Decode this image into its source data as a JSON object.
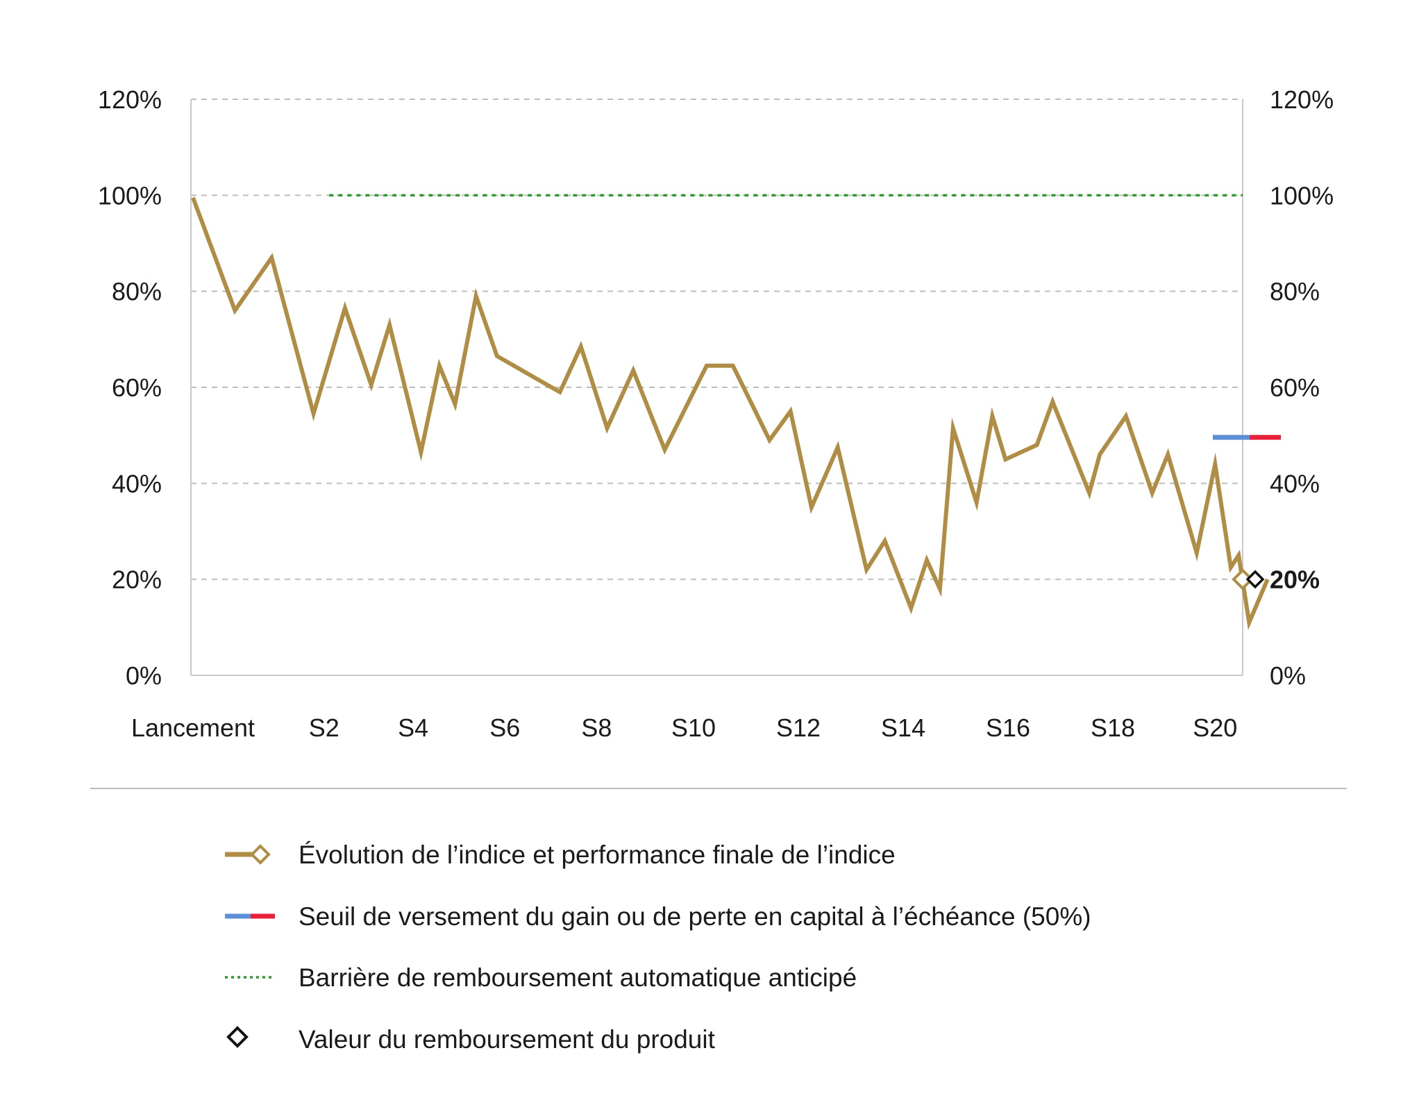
{
  "chart_data": {
    "type": "line",
    "y_ticks": [
      "0%",
      "20%",
      "40%",
      "60%",
      "80%",
      "100%",
      "120%"
    ],
    "y_tick_values": [
      0,
      20,
      40,
      60,
      80,
      100,
      120
    ],
    "ylim": [
      0,
      120
    ],
    "x_labels": [
      "Lancement",
      "S2",
      "S4",
      "S6",
      "S8",
      "S10",
      "S12",
      "S14",
      "S16",
      "S18",
      "S20"
    ],
    "x_label_positions": [
      0,
      2.5,
      4.2,
      5.95,
      7.7,
      9.55,
      11.55,
      13.55,
      15.55,
      17.55,
      19.5
    ],
    "xlim": [
      0,
      19.8
    ],
    "grid": true,
    "series": [
      {
        "name": "Évolution de l’indice et performance finale de l’indice",
        "color": "#B08D45",
        "points": [
          [
            0,
            99.5
          ],
          [
            0.8,
            76
          ],
          [
            1.5,
            87
          ],
          [
            2.3,
            54.5
          ],
          [
            2.9,
            76.5
          ],
          [
            3.4,
            60.5
          ],
          [
            3.75,
            73
          ],
          [
            4.35,
            46.5
          ],
          [
            4.7,
            64.5
          ],
          [
            5.0,
            56.5
          ],
          [
            5.4,
            79
          ],
          [
            5.8,
            66.5
          ],
          [
            7.0,
            59
          ],
          [
            7.4,
            68.5
          ],
          [
            7.9,
            51.5
          ],
          [
            8.4,
            63.5
          ],
          [
            9.0,
            47
          ],
          [
            9.8,
            64.5
          ],
          [
            10.3,
            64.5
          ],
          [
            11.0,
            49
          ],
          [
            11.4,
            55
          ],
          [
            11.8,
            35
          ],
          [
            12.3,
            47.5
          ],
          [
            12.85,
            22
          ],
          [
            13.2,
            28
          ],
          [
            13.7,
            14
          ],
          [
            14.0,
            24
          ],
          [
            14.25,
            18
          ],
          [
            14.5,
            51.5
          ],
          [
            14.95,
            36
          ],
          [
            15.25,
            54
          ],
          [
            15.5,
            45
          ],
          [
            16.1,
            48
          ],
          [
            16.4,
            57
          ],
          [
            17.1,
            38
          ],
          [
            17.3,
            46
          ],
          [
            17.8,
            54
          ],
          [
            18.3,
            38
          ],
          [
            18.6,
            46
          ],
          [
            19.15,
            25.5
          ],
          [
            19.5,
            44
          ],
          [
            19.8,
            22.5
          ],
          [
            19.95,
            25
          ],
          [
            20.15,
            11
          ],
          [
            20.5,
            20
          ]
        ]
      }
    ],
    "barrier": {
      "name": "Barrière de remboursement automatique anticipé",
      "value": 100,
      "x_start": 2.6,
      "x_end": 20.5,
      "color": "#2E9A2E"
    },
    "threshold": {
      "name": "Seuil de versement du gain ou de perte en capital à l’échéance (50%)",
      "value": 50,
      "colors": [
        "#5B8FD6",
        "#E8203A"
      ]
    },
    "final_performance": {
      "value": 20,
      "color": "#B08D45"
    },
    "redemption_value": {
      "name": "Valeur du remboursement du produit",
      "value": 20,
      "label": "20%",
      "color": "#111111"
    },
    "legend": [
      {
        "label": "Évolution de l’indice et performance finale de l’indice",
        "icon": "gold-line-diamond-icon"
      },
      {
        "label": "Seuil de versement du gain ou de perte en capital à l’échéance (50%)",
        "icon": "blue-red-line-icon"
      },
      {
        "label": "Barrière de remboursement automatique anticipé",
        "icon": "green-dotted-line-icon"
      },
      {
        "label": "Valeur du remboursement du produit",
        "icon": "black-diamond-icon"
      }
    ]
  }
}
